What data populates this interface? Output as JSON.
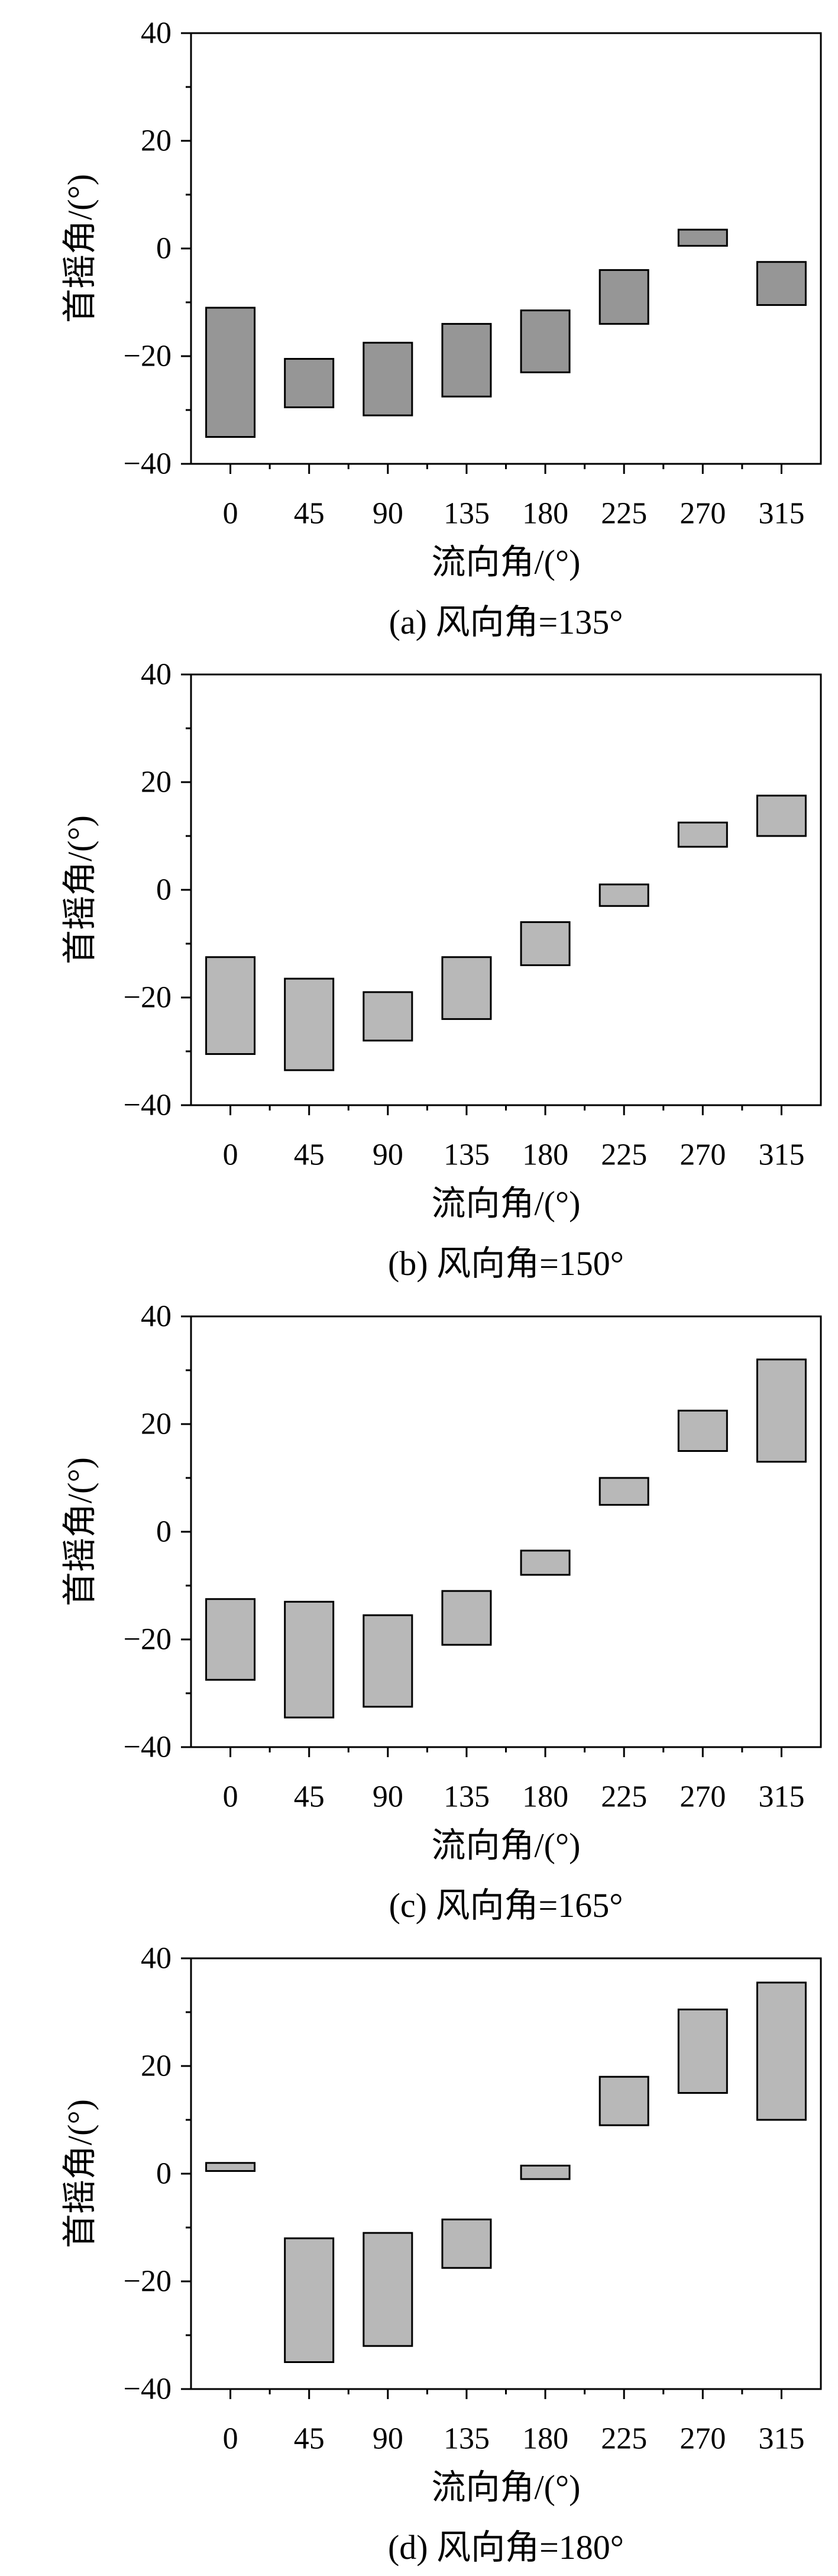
{
  "page": {
    "background": "#ffffff",
    "text_color": "#000000"
  },
  "axis": {
    "ylabel": "首摇角/(°)",
    "xlabel": "流向角/(°)",
    "y_ticks": [
      40,
      20,
      0,
      -20,
      -40
    ],
    "y_minor_ticks": [
      30,
      10,
      -10,
      -30
    ],
    "ylim": [
      -40,
      40
    ],
    "x_categories": [
      "0",
      "45",
      "90",
      "135",
      "180",
      "225",
      "270",
      "315"
    ],
    "grid": "off",
    "tick_direction": "out"
  },
  "chart_data": [
    {
      "type": "bar",
      "variant": "floating-range-bars",
      "caption": "(a) 风向角=135°",
      "wind_angle": "135°",
      "bar_color": "#969696",
      "bar_border_color": "#000000",
      "categories": [
        "0",
        "45",
        "90",
        "135",
        "180",
        "225",
        "270",
        "315"
      ],
      "ranges": [
        [
          -35,
          -11
        ],
        [
          -29.5,
          -20.5
        ],
        [
          -31,
          -17.5
        ],
        [
          -27.5,
          -14
        ],
        [
          -23,
          -11.5
        ],
        [
          -14,
          -4
        ],
        [
          0.5,
          3.5
        ],
        [
          -10.5,
          -2.5
        ]
      ],
      "xlabel": "流向角/(°)",
      "ylabel": "首摇角/(°)",
      "ylim": [
        -40,
        40
      ]
    },
    {
      "type": "bar",
      "variant": "floating-range-bars",
      "caption": "(b) 风向角=150°",
      "wind_angle": "150°",
      "bar_color": "#b8b8b8",
      "bar_border_color": "#000000",
      "categories": [
        "0",
        "45",
        "90",
        "135",
        "180",
        "225",
        "270",
        "315"
      ],
      "ranges": [
        [
          -30.5,
          -12.5
        ],
        [
          -33.5,
          -16.5
        ],
        [
          -28,
          -19
        ],
        [
          -24,
          -12.5
        ],
        [
          -14,
          -6
        ],
        [
          -3,
          1
        ],
        [
          8,
          12.5
        ],
        [
          10,
          17.5
        ]
      ],
      "xlabel": "流向角/(°)",
      "ylabel": "首摇角/(°)",
      "ylim": [
        -40,
        40
      ]
    },
    {
      "type": "bar",
      "variant": "floating-range-bars",
      "caption": "(c) 风向角=165°",
      "wind_angle": "165°",
      "bar_color": "#b8b8b8",
      "bar_border_color": "#000000",
      "categories": [
        "0",
        "45",
        "90",
        "135",
        "180",
        "225",
        "270",
        "315"
      ],
      "ranges": [
        [
          -27.5,
          -12.5
        ],
        [
          -34.5,
          -13
        ],
        [
          -32.5,
          -15.5
        ],
        [
          -21,
          -11
        ],
        [
          -8,
          -3.5
        ],
        [
          5,
          10
        ],
        [
          15,
          22.5
        ],
        [
          13,
          32
        ]
      ],
      "xlabel": "流向角/(°)",
      "ylabel": "首摇角/(°)",
      "ylim": [
        -40,
        40
      ]
    },
    {
      "type": "bar",
      "variant": "floating-range-bars",
      "caption": "(d) 风向角=180°",
      "wind_angle": "180°",
      "bar_color": "#b8b8b8",
      "bar_border_color": "#000000",
      "categories": [
        "0",
        "45",
        "90",
        "135",
        "180",
        "225",
        "270",
        "315"
      ],
      "ranges": [
        [
          0.5,
          2
        ],
        [
          -35,
          -12
        ],
        [
          -32,
          -11
        ],
        [
          -17.5,
          -8.5
        ],
        [
          -1,
          1.5
        ],
        [
          9,
          18
        ],
        [
          15,
          30.5
        ],
        [
          10,
          35.5
        ]
      ],
      "xlabel": "流向角/(°)",
      "ylabel": "首摇角/(°)",
      "ylim": [
        -40,
        40
      ]
    }
  ]
}
